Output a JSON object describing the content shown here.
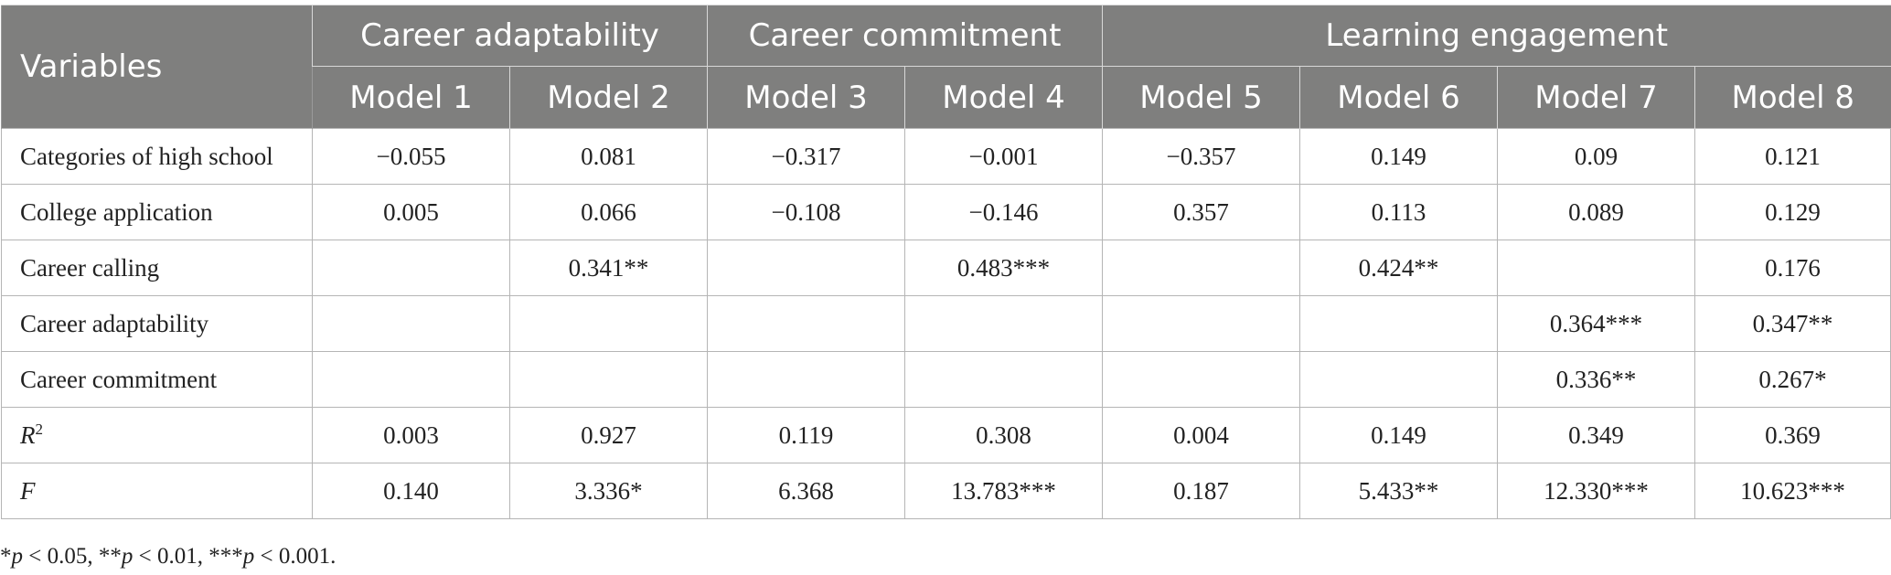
{
  "table": {
    "variables_header": "Variables",
    "groups": [
      {
        "label": "Career adaptability",
        "span": 2
      },
      {
        "label": "Career commitment",
        "span": 2
      },
      {
        "label": "Learning engagement",
        "span": 4
      }
    ],
    "models": [
      "Model 1",
      "Model 2",
      "Model 3",
      "Model 4",
      "Model 5",
      "Model 6",
      "Model 7",
      "Model 8"
    ],
    "rows": [
      {
        "label": "Categories of high school",
        "values": [
          "−0.055",
          "0.081",
          "−0.317",
          "−0.001",
          "−0.357",
          "0.149",
          "0.09",
          "0.121"
        ]
      },
      {
        "label": "College application",
        "values": [
          "0.005",
          "0.066",
          "−0.108",
          "−0.146",
          "0.357",
          "0.113",
          "0.089",
          "0.129"
        ]
      },
      {
        "label": "Career calling",
        "values": [
          "",
          "0.341**",
          "",
          "0.483***",
          "",
          "0.424**",
          "",
          "0.176"
        ]
      },
      {
        "label": "Career adaptability",
        "values": [
          "",
          "",
          "",
          "",
          "",
          "",
          "0.364***",
          "0.347**"
        ]
      },
      {
        "label": "Career commitment",
        "values": [
          "",
          "",
          "",
          "",
          "",
          "",
          "0.336**",
          "0.267*"
        ]
      },
      {
        "label": "R",
        "sup": "2",
        "italic": true,
        "values": [
          "0.003",
          "0.927",
          "0.119",
          "0.308",
          "0.004",
          "0.149",
          "0.349",
          "0.369"
        ]
      },
      {
        "label": "F",
        "italic": true,
        "values": [
          "0.140",
          "3.336*",
          "6.368",
          "13.783***",
          "0.187",
          "5.433**",
          "12.330***",
          "10.623***"
        ]
      }
    ]
  },
  "note": {
    "p1_stars": "*",
    "p1_rest": " < 0.05, ",
    "p2_stars": "**",
    "p2_rest": " < 0.01, ",
    "p3_stars": "***",
    "p3_rest": " < 0.001.",
    "p_symbol": "p"
  }
}
